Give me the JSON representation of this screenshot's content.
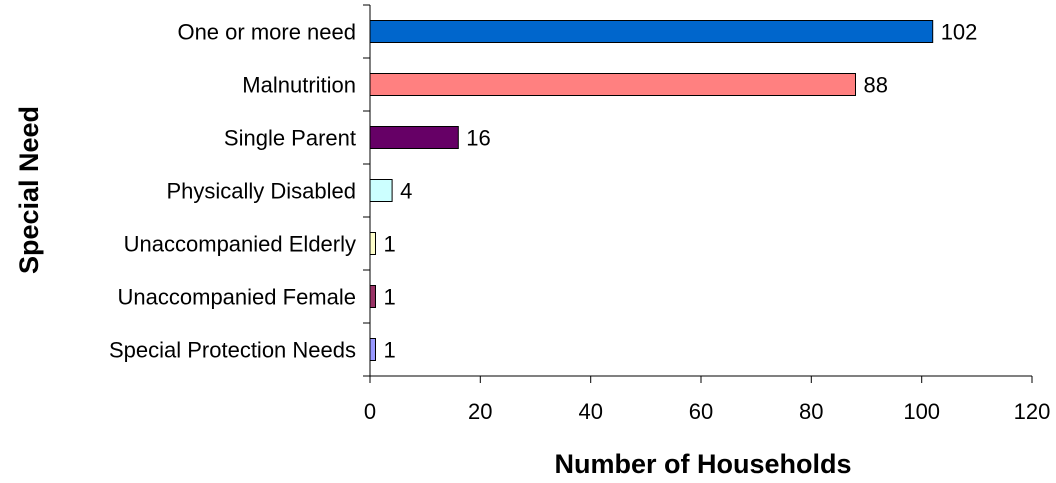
{
  "chart_data": {
    "type": "bar",
    "orientation": "horizontal",
    "title": "",
    "xlabel": "Number of Households",
    "ylabel": "Special Need",
    "xlim": [
      0,
      120
    ],
    "xticks": [
      0,
      20,
      40,
      60,
      80,
      100,
      120
    ],
    "grid": false,
    "legend": "none",
    "categories": [
      "One or more need",
      "Malnutrition",
      "Single Parent",
      "Physically Disabled",
      "Unaccompanied Elderly",
      "Unaccompanied Female",
      "Special Protection Needs"
    ],
    "values": [
      102,
      88,
      16,
      4,
      1,
      1,
      1
    ],
    "value_labels": [
      "102",
      "88",
      "16",
      "4",
      "1",
      "1",
      "1"
    ],
    "colors": [
      "#0066cc",
      "#ff8080",
      "#660066",
      "#ccffff",
      "#ffffcc",
      "#993366",
      "#9999ff"
    ]
  }
}
